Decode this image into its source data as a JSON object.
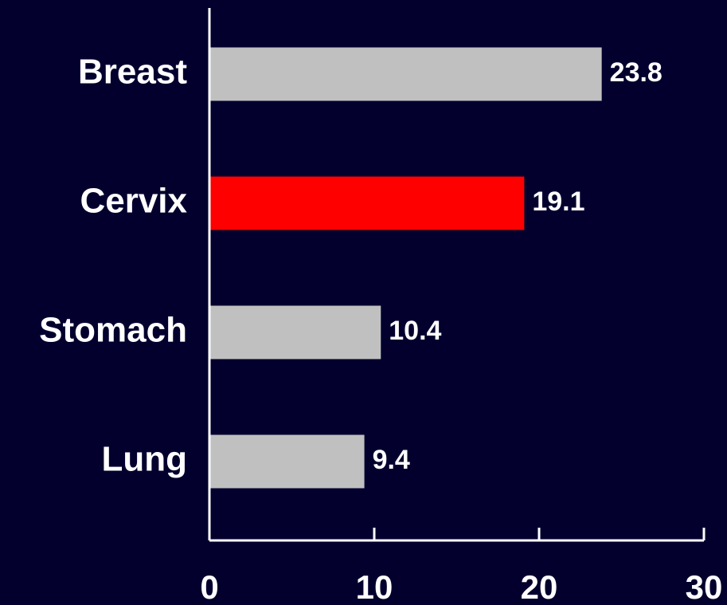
{
  "chart_data": {
    "type": "bar",
    "orientation": "horizontal",
    "categories": [
      "Breast",
      "Cervix",
      "Stomach",
      "Lung"
    ],
    "values": [
      23.8,
      19.1,
      10.4,
      9.4
    ],
    "colors": [
      "#c0c0c0",
      "#ff0000",
      "#c0c0c0",
      "#c0c0c0"
    ],
    "xlim": [
      0,
      30
    ],
    "xticks": [
      0,
      10,
      20,
      30
    ]
  }
}
